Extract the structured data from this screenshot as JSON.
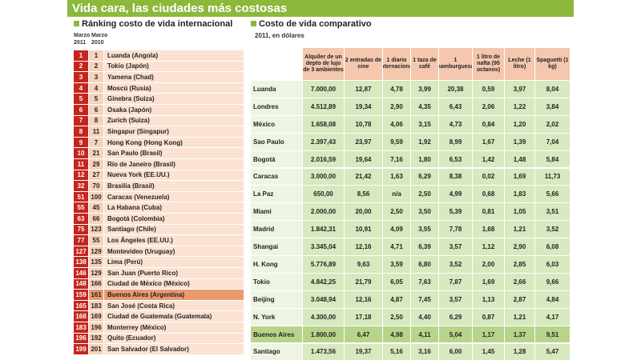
{
  "header": {
    "title": "Vida cara, las ciudades más costosas"
  },
  "ranking": {
    "title": "Ránking costo de vida internacional",
    "columns": [
      "Marzo 2011",
      "Marzo 2010"
    ],
    "rows": [
      [
        "1",
        "1",
        "Luanda (Angola)"
      ],
      [
        "2",
        "2",
        "Tokio (Japón)"
      ],
      [
        "3",
        "3",
        "Yamena (Chad)"
      ],
      [
        "4",
        "4",
        "Moscú (Rusia)"
      ],
      [
        "5",
        "5",
        "Ginebra (Suiza)"
      ],
      [
        "6",
        "6",
        "Osaka (Japón)"
      ],
      [
        "7",
        "8",
        "Zurich (Suiza)"
      ],
      [
        "8",
        "11",
        "Singapur (Singapur)"
      ],
      [
        "9",
        "7",
        "Hong Kong (Hong Kong)"
      ],
      [
        "10",
        "21",
        "San Paulo (Brasil)"
      ],
      [
        "11",
        "29",
        "Río de Janeiro (Brasil)"
      ],
      [
        "12",
        "27",
        "Nueva York (EE.UU.)"
      ],
      [
        "32",
        "70",
        "Brasilia (Brasil)"
      ],
      [
        "51",
        "100",
        "Caracas (Venezuela)"
      ],
      [
        "55",
        "45",
        "La Habana (Cuba)"
      ],
      [
        "63",
        "66",
        "Bogotá (Colombia)"
      ],
      [
        "75",
        "123",
        "Santiago (Chile)"
      ],
      [
        "77",
        "55",
        "Los Ángeles (EE.UU.)"
      ],
      [
        "127",
        "129",
        "Montevideo (Uruguay)"
      ],
      [
        "138",
        "135",
        "Lima (Perú)"
      ],
      [
        "146",
        "129",
        "San Juan (Puerto Rico)"
      ],
      [
        "148",
        "166",
        "Ciudad de México (México)"
      ],
      [
        "159",
        "161",
        "Buenos Aires (Argentina)"
      ],
      [
        "165",
        "183",
        "San José (Costa Rica)"
      ],
      [
        "168",
        "169",
        "Ciudad de Guatemala (Guatemala)"
      ],
      [
        "183",
        "196",
        "Monterrey (México)"
      ],
      [
        "196",
        "192",
        "Quito (Ecuador)"
      ],
      [
        "199",
        "201",
        "San Salvador (El Salvador)"
      ]
    ]
  },
  "comparison": {
    "title": "Costo de vida comparativo",
    "subtitle": "2011, en dólares",
    "columns": [
      "Alquiler de un depto de lujo de 3 ambientes",
      "2 entradas de cine",
      "1 diario internacional",
      "1 taza de café",
      "1 hamburguesa",
      "1 litro de nafta (95 octanos)",
      "Leche (1 litro)",
      "Spaguetti (1 kg)"
    ],
    "rows": [
      [
        "Luanda",
        "7.000,00",
        "12,87",
        "4,78",
        "3,99",
        "20,38",
        "0,59",
        "3,97",
        "8,04"
      ],
      [
        "Londres",
        "4.512,89",
        "19,34",
        "2,90",
        "4,35",
        "6,43",
        "2,06",
        "1,22",
        "3,84"
      ],
      [
        "México",
        "1.658,08",
        "10,78",
        "4,06",
        "3,15",
        "4,73",
        "0,84",
        "1,20",
        "2,02"
      ],
      [
        "Sao Paulo",
        "2.397,43",
        "23,97",
        "9,59",
        "1,92",
        "8,99",
        "1,67",
        "1,39",
        "7,04"
      ],
      [
        "Bogotá",
        "2.016,59",
        "19,64",
        "7,16",
        "1,80",
        "6,53",
        "1,42",
        "1,48",
        "5,84"
      ],
      [
        "Caracas",
        "3.000,00",
        "21,42",
        "1,63",
        "6,29",
        "8,38",
        "0,02",
        "1,69",
        "11,73"
      ],
      [
        "La Paz",
        "650,00",
        "8,56",
        "n/a",
        "2,50",
        "4,99",
        "0,68",
        "1,83",
        "5,66"
      ],
      [
        "Miami",
        "2.000,00",
        "20,00",
        "2,50",
        "3,50",
        "5,39",
        "0,81",
        "1,05",
        "3,51"
      ],
      [
        "Madrid",
        "1.842,31",
        "10,91",
        "4,09",
        "3,55",
        "7,78",
        "1,68",
        "1,21",
        "3,52"
      ],
      [
        "Shangai",
        "3.345,04",
        "12,16",
        "4,71",
        "6,39",
        "3,57",
        "1,12",
        "2,90",
        "6,08"
      ],
      [
        "H. Kong",
        "5.776,89",
        "9,63",
        "3,59",
        "6,80",
        "3,52",
        "2,00",
        "2,85",
        "6,03"
      ],
      [
        "Tokio",
        "4.842,25",
        "21,79",
        "6,05",
        "7,63",
        "7,87",
        "1,69",
        "2,66",
        "9,66"
      ],
      [
        "Beijing",
        "3.048,94",
        "12,16",
        "4,87",
        "7,45",
        "3,57",
        "1,13",
        "2,87",
        "4,84"
      ],
      [
        "N. York",
        "4.300,00",
        "17,18",
        "2,50",
        "4,40",
        "6,29",
        "0,87",
        "1,21",
        "4,17"
      ],
      [
        "Buenos Aires",
        "1.800,00",
        "6,47",
        "4,98",
        "4,11",
        "5,04",
        "1,17",
        "1,37",
        "9,51"
      ],
      [
        "Santiago",
        "1.473,56",
        "19,37",
        "5,16",
        "3,16",
        "6,00",
        "1,45",
        "1,28",
        "5,47"
      ]
    ]
  }
}
